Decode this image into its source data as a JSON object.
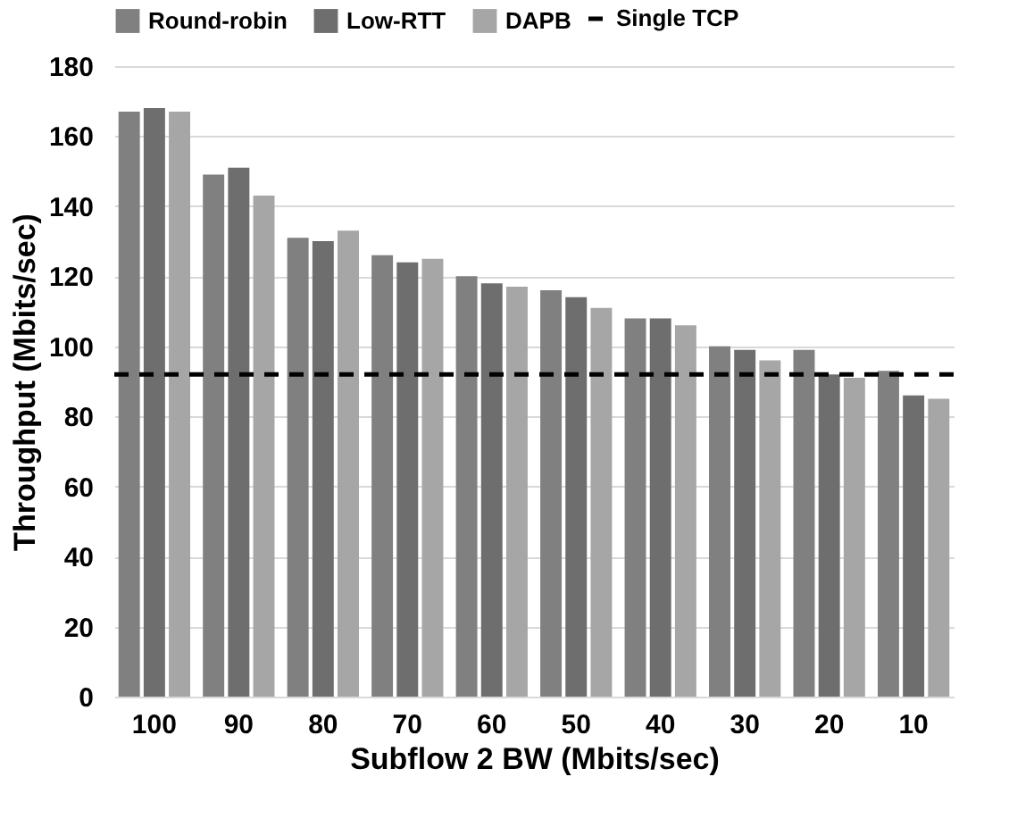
{
  "chart_data": {
    "type": "bar",
    "xlabel": "Subflow 2 BW (Mbits/sec)",
    "ylabel": "Throughput (Mbits/sec)",
    "categories": [
      "100",
      "90",
      "80",
      "70",
      "60",
      "50",
      "40",
      "30",
      "20",
      "10"
    ],
    "series": [
      {
        "name": "Round-robin",
        "color": "#808080",
        "values": [
          167,
          149,
          131,
          126,
          120,
          116,
          108,
          100,
          99,
          93
        ]
      },
      {
        "name": "Low-RTT",
        "color": "#6e6e6e",
        "values": [
          168,
          151,
          130,
          124,
          118,
          114,
          108,
          99,
          92,
          86
        ]
      },
      {
        "name": "DAPB",
        "color": "#a6a6a6",
        "values": [
          167,
          143,
          133,
          125,
          117,
          111,
          106,
          96,
          91,
          85
        ]
      }
    ],
    "ylim": [
      0,
      180
    ],
    "yticks": [
      0,
      20,
      40,
      60,
      80,
      100,
      120,
      140,
      160,
      180
    ],
    "grid": "y",
    "legend": "top",
    "ref_lines": [
      {
        "axis": "y",
        "value": 92,
        "label": "Single TCP",
        "color": "#000000",
        "line_style": "dashed"
      }
    ]
  }
}
